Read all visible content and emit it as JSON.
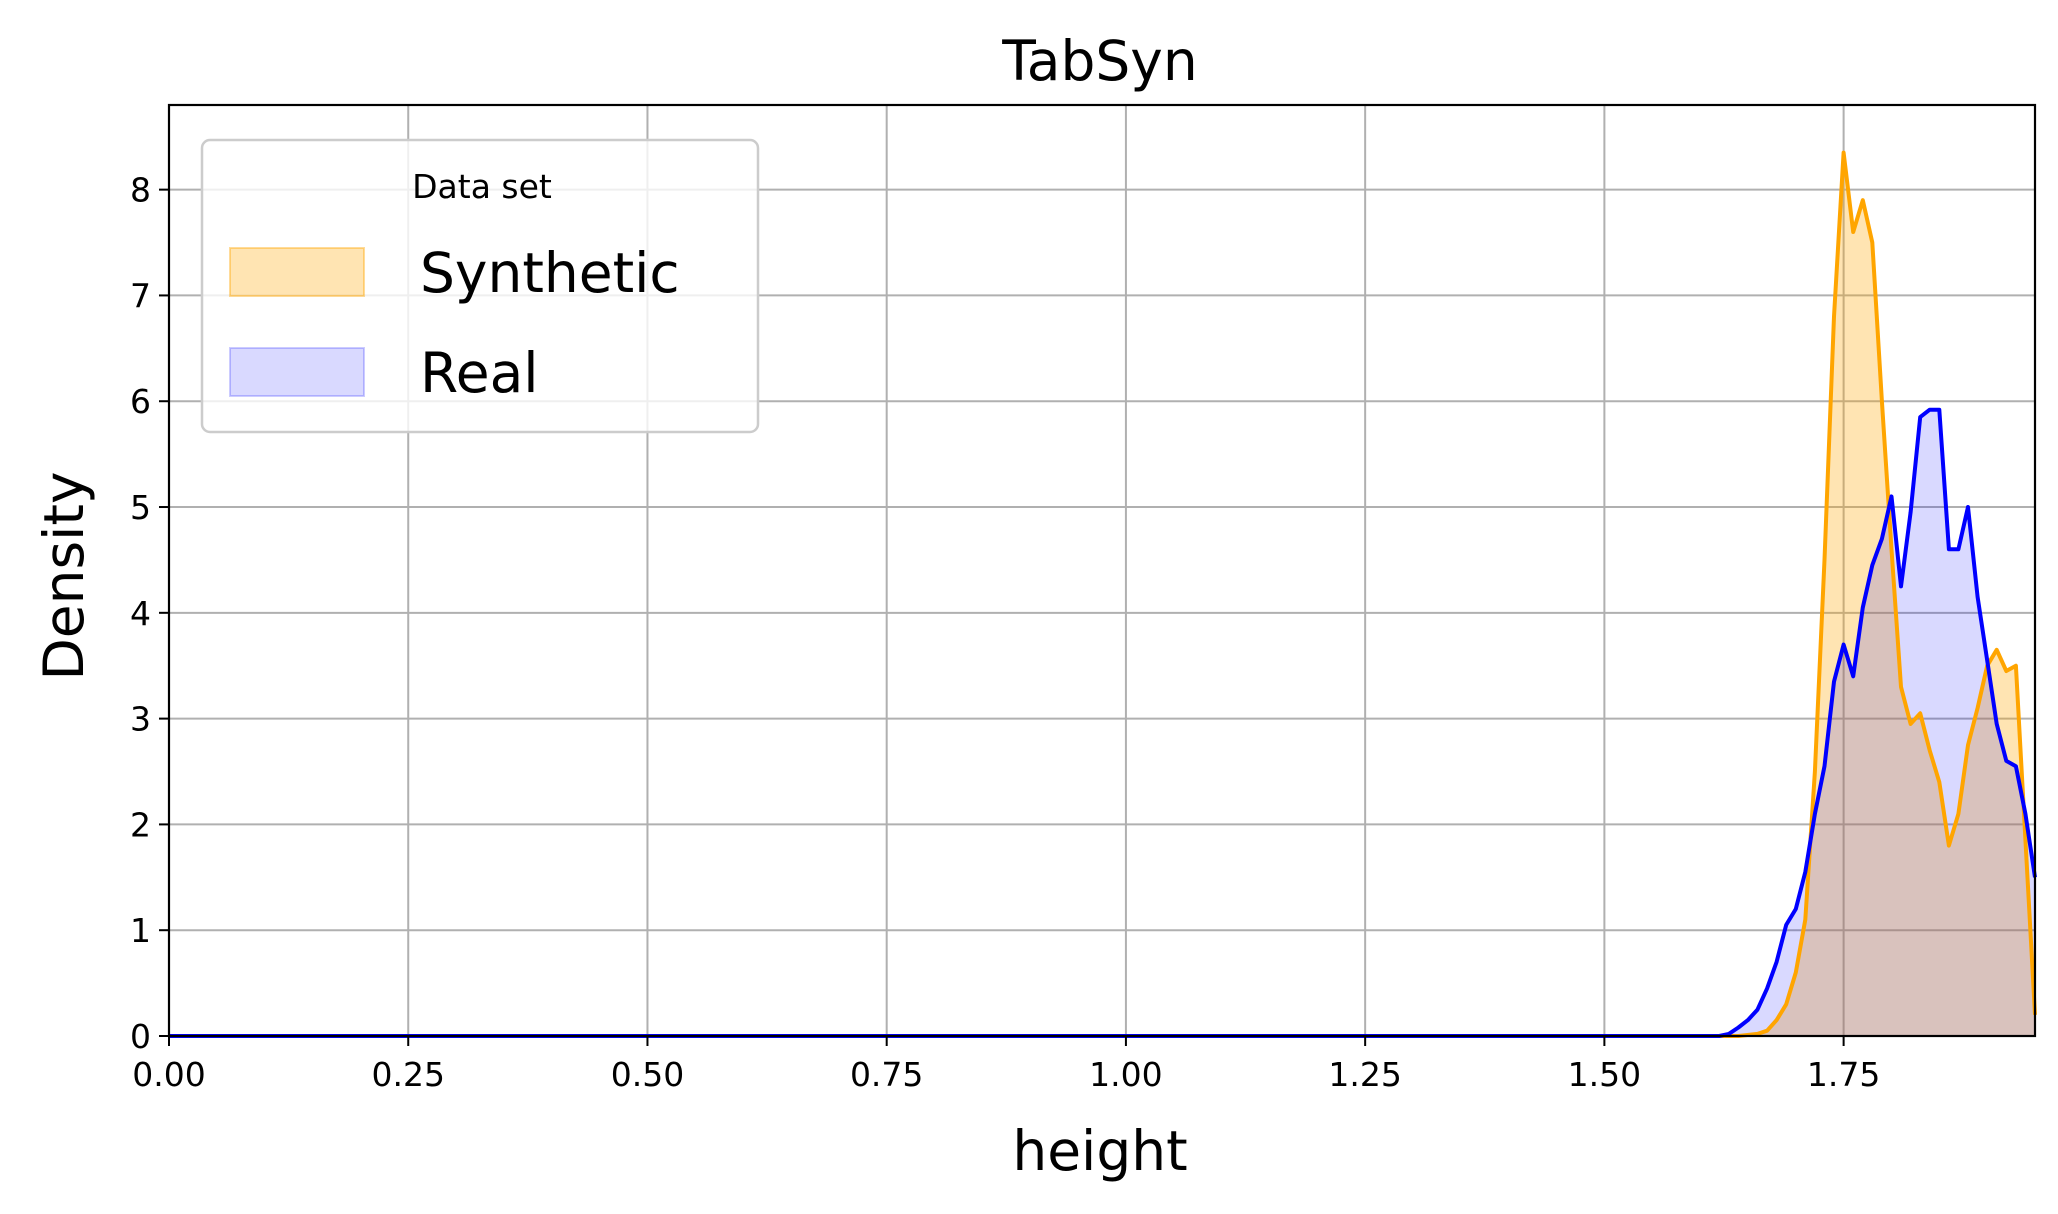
{
  "chart_data": {
    "type": "area",
    "title": "TabSyn",
    "xlabel": "height",
    "ylabel": "Density",
    "xlim": [
      0.0,
      1.95
    ],
    "ylim": [
      0,
      8.8
    ],
    "xticks": [
      0.0,
      0.25,
      0.5,
      0.75,
      1.0,
      1.25,
      1.5,
      1.75
    ],
    "xtick_labels": [
      "0.00",
      "0.25",
      "0.50",
      "0.75",
      "1.00",
      "1.25",
      "1.50",
      "1.75"
    ],
    "yticks": [
      0,
      1,
      2,
      3,
      4,
      5,
      6,
      7,
      8
    ],
    "ytick_labels": [
      "0",
      "1",
      "2",
      "3",
      "4",
      "5",
      "6",
      "7",
      "8"
    ],
    "grid": true,
    "legend": {
      "title": "Data set",
      "placement": "top-left",
      "entries": [
        "Synthetic",
        "Real"
      ]
    },
    "series": [
      {
        "name": "Synthetic",
        "line_color": "#ffa500",
        "fill_color": "#ffa500",
        "x": [
          0.0,
          1.5,
          1.64,
          1.66,
          1.67,
          1.68,
          1.69,
          1.7,
          1.71,
          1.72,
          1.73,
          1.74,
          1.75,
          1.76,
          1.77,
          1.78,
          1.79,
          1.8,
          1.81,
          1.82,
          1.83,
          1.84,
          1.85,
          1.86,
          1.87,
          1.88,
          1.89,
          1.9,
          1.91,
          1.92,
          1.93,
          1.95
        ],
        "y": [
          0,
          0,
          0,
          0.02,
          0.05,
          0.15,
          0.3,
          0.6,
          1.1,
          2.5,
          4.5,
          6.8,
          8.35,
          7.6,
          7.9,
          7.5,
          6.0,
          4.6,
          3.3,
          2.95,
          3.05,
          2.7,
          2.4,
          1.8,
          2.1,
          2.75,
          3.1,
          3.5,
          3.65,
          3.45,
          3.5,
          0.2
        ]
      },
      {
        "name": "Real",
        "line_color": "#0000ff",
        "fill_color": "#0000ff",
        "x": [
          0.0,
          1.5,
          1.62,
          1.63,
          1.64,
          1.65,
          1.66,
          1.67,
          1.68,
          1.69,
          1.7,
          1.71,
          1.72,
          1.73,
          1.74,
          1.75,
          1.76,
          1.77,
          1.78,
          1.79,
          1.8,
          1.81,
          1.82,
          1.83,
          1.84,
          1.85,
          1.86,
          1.87,
          1.88,
          1.89,
          1.9,
          1.91,
          1.92,
          1.93,
          1.94,
          1.95
        ],
        "y": [
          0,
          0,
          0,
          0.02,
          0.08,
          0.15,
          0.25,
          0.45,
          0.7,
          1.05,
          1.2,
          1.55,
          2.1,
          2.55,
          3.35,
          3.7,
          3.4,
          4.05,
          4.45,
          4.7,
          5.1,
          4.25,
          4.95,
          5.85,
          5.92,
          5.92,
          4.6,
          4.6,
          5.0,
          4.15,
          3.55,
          2.95,
          2.6,
          2.55,
          2.1,
          1.5
        ]
      }
    ]
  }
}
